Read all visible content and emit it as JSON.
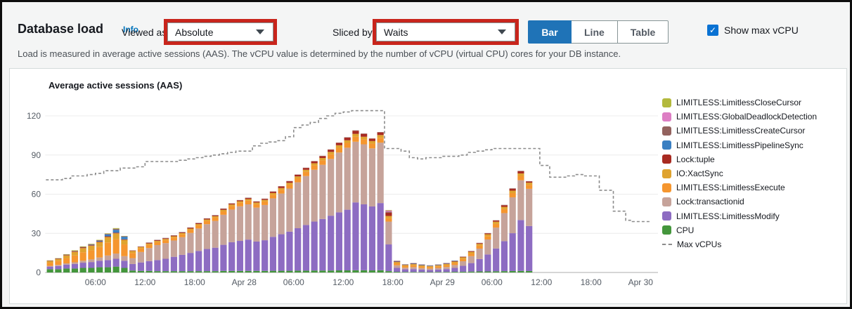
{
  "header": {
    "title": "Database load",
    "info_label": "Info"
  },
  "subtitle": "Load is measured in average active sessions (AAS). The vCPU value is determined by the number of vCPU (virtual CPU) cores for your DB instance.",
  "controls": {
    "viewed_as_label": "Viewed as",
    "viewed_as_value": "Absolute",
    "sliced_by_label": "Sliced by",
    "sliced_by_value": "Waits",
    "annotation_color": "#c8251c",
    "view_buttons": [
      {
        "label": "Bar",
        "selected": true
      },
      {
        "label": "Line",
        "selected": false
      },
      {
        "label": "Table",
        "selected": false
      }
    ],
    "selected_button_color": "#1f73b7",
    "show_max_vcpu": {
      "label": "Show max vCPU",
      "checked": true,
      "check_icon": "✓",
      "color": "#0972d3"
    }
  },
  "chart_data": {
    "type": "bar",
    "stacked": true,
    "title": "Average active sessions (AAS)",
    "ylabel": "",
    "xlabel": "",
    "ylim": [
      0,
      127
    ],
    "x_range_hours": [
      0,
      74
    ],
    "grid": "horizontal",
    "legend_position": "right",
    "y_ticks": [
      0,
      30,
      60,
      90,
      120
    ],
    "x_ticks": [
      {
        "h": 6,
        "label": "06:00"
      },
      {
        "h": 12,
        "label": "12:00"
      },
      {
        "h": 18,
        "label": "18:00"
      },
      {
        "h": 24,
        "label": "Apr 28"
      },
      {
        "h": 30,
        "label": "06:00"
      },
      {
        "h": 36,
        "label": "12:00"
      },
      {
        "h": 42,
        "label": "18:00"
      },
      {
        "h": 48,
        "label": "Apr 29"
      },
      {
        "h": 54,
        "label": "06:00"
      },
      {
        "h": 60,
        "label": "12:00"
      },
      {
        "h": 66,
        "label": "18:00"
      },
      {
        "h": 72,
        "label": "Apr 30"
      }
    ],
    "series": [
      {
        "name": "CPU",
        "color": "#44963c"
      },
      {
        "name": "LIMITLESS:LimitlessModify",
        "color": "#8d6cc2"
      },
      {
        "name": "Lock:transactionid",
        "color": "#c6a39a"
      },
      {
        "name": "LIMITLESS:LimitlessExecute",
        "color": "#f5962f"
      },
      {
        "name": "IO:XactSync",
        "color": "#dfa32f"
      },
      {
        "name": "Lock:tuple",
        "color": "#a82a21"
      },
      {
        "name": "LIMITLESS:LimitlessPipelineSync",
        "color": "#3a7fc2"
      },
      {
        "name": "LIMITLESS:LimitlessCreateCursor",
        "color": "#93625e"
      },
      {
        "name": "LIMITLESS:GlobalDeadlockDetection",
        "color": "#dd7ec4"
      },
      {
        "name": "LIMITLESS:LimitlessCloseCursor",
        "color": "#b3b93d"
      }
    ],
    "bars": [
      [
        0.5,
        2.5,
        2,
        0.5,
        2.5,
        1.2,
        0.2,
        0,
        0.2,
        0,
        0.2
      ],
      [
        1.5,
        2.5,
        2.5,
        0.8,
        3,
        1.5,
        0.2,
        0,
        0.3,
        0,
        0.2
      ],
      [
        2.5,
        3,
        3,
        1,
        4,
        2,
        0.3,
        0,
        0.4,
        0,
        0.3
      ],
      [
        3.5,
        3,
        3.5,
        1.3,
        5.2,
        2.8,
        0.3,
        0,
        0.5,
        0,
        0.4
      ],
      [
        4.5,
        3.5,
        4,
        1.5,
        6.5,
        3.2,
        0.4,
        0,
        0.5,
        0,
        0.4
      ],
      [
        5.5,
        3.5,
        4.5,
        2,
        7,
        3.5,
        0.4,
        0.3,
        0.5,
        0,
        0.3
      ],
      [
        6.5,
        4,
        5,
        2.5,
        8,
        3.8,
        0.4,
        0.5,
        0.5,
        0,
        0.3
      ],
      [
        7.5,
        4,
        5.5,
        3.5,
        10,
        4.2,
        0.5,
        1.5,
        0.5,
        0,
        0.3
      ],
      [
        8.5,
        4.5,
        6,
        4,
        11,
        4.5,
        0.5,
        2.2,
        0.8,
        0,
        0.5
      ],
      [
        9.5,
        3.5,
        5.5,
        3.5,
        9,
        3.5,
        0.4,
        2,
        0.4,
        0,
        0.2
      ],
      [
        10.5,
        1.5,
        5,
        4.5,
        4,
        1.5,
        0.3,
        0,
        0.2,
        0,
        0
      ],
      [
        11.5,
        1.2,
        6.5,
        8,
        2.8,
        1,
        0.3,
        0,
        0.2,
        0,
        0
      ],
      [
        12.5,
        1.2,
        7.5,
        10,
        2.5,
        1,
        0.5,
        0,
        0.3,
        0,
        0
      ],
      [
        13.5,
        1,
        8.5,
        11.5,
        2.2,
        1,
        0.5,
        0,
        0.3,
        0,
        0
      ],
      [
        14.5,
        1,
        9.5,
        12,
        2.2,
        1,
        0.5,
        0,
        0.3,
        0,
        0
      ],
      [
        15.5,
        1,
        11,
        12.5,
        2.2,
        1,
        0.5,
        0,
        0.3,
        0,
        0
      ],
      [
        16.5,
        1,
        12.5,
        13.5,
        2.2,
        1,
        0.5,
        0,
        0.3,
        0,
        0
      ],
      [
        17.5,
        1,
        14,
        15.3,
        2.3,
        1,
        0.6,
        0,
        0.3,
        0,
        0
      ],
      [
        18.5,
        1,
        15.5,
        17.2,
        2.4,
        1,
        0.6,
        0,
        0.3,
        0,
        0
      ],
      [
        19.5,
        1,
        17,
        19,
        2.5,
        1.1,
        0.6,
        0,
        0.3,
        0,
        0
      ],
      [
        20.5,
        1,
        18,
        20.5,
        2.5,
        1.1,
        0.6,
        0,
        0.3,
        0,
        0
      ],
      [
        21.5,
        1.2,
        20,
        23,
        2.6,
        1.2,
        0.7,
        0,
        0.3,
        0,
        0
      ],
      [
        22.5,
        1.2,
        22,
        25,
        2.7,
        1.2,
        0.7,
        0,
        0.2,
        0,
        0
      ],
      [
        23.5,
        1.2,
        23,
        26.5,
        2.7,
        1.2,
        0.7,
        0,
        0.2,
        0,
        0
      ],
      [
        24.5,
        1.2,
        24,
        27,
        2.8,
        1.2,
        0.8,
        0,
        0.3,
        0,
        0
      ],
      [
        25.5,
        1.2,
        22.5,
        26,
        2.7,
        1.2,
        0.7,
        0,
        0.2,
        0,
        0
      ],
      [
        26.5,
        1.2,
        23.5,
        27,
        2.7,
        1.2,
        0.8,
        0,
        0.2,
        0,
        0
      ],
      [
        27.5,
        1.3,
        26,
        29.5,
        2.8,
        1.3,
        1,
        0,
        0.2,
        0,
        0
      ],
      [
        28.5,
        1.3,
        28,
        31.2,
        2.9,
        1.3,
        1.2,
        0,
        0.2,
        0,
        0
      ],
      [
        29.5,
        1.3,
        30,
        33,
        3,
        1.4,
        1.2,
        0,
        0.2,
        0,
        0
      ],
      [
        30.5,
        1.4,
        32.5,
        35.2,
        3,
        1.5,
        1.3,
        0,
        0.2,
        0,
        0
      ],
      [
        31.5,
        1.4,
        35,
        37.5,
        3.2,
        1.6,
        1.4,
        0,
        0.2,
        0,
        0
      ],
      [
        32.5,
        1.5,
        37.5,
        39.7,
        3.3,
        1.7,
        1.5,
        0,
        0.2,
        0,
        0
      ],
      [
        33.5,
        1.5,
        39.5,
        41.5,
        3.4,
        1.8,
        1.5,
        0,
        0.2,
        0,
        0
      ],
      [
        34.5,
        1.5,
        42,
        43.5,
        3.5,
        1.9,
        1.7,
        0,
        0.2,
        0,
        0
      ],
      [
        35.5,
        1.6,
        44.5,
        45.8,
        3.6,
        2,
        1.8,
        0,
        0.2,
        0,
        0
      ],
      [
        36.5,
        1.6,
        46.5,
        47.5,
        3.7,
        2,
        2,
        0,
        0.3,
        0,
        0
      ],
      [
        37.5,
        1.7,
        52,
        46.5,
        3.8,
        2.2,
        2.4,
        0,
        0.3,
        0,
        0
      ],
      [
        38.5,
        1.7,
        50.5,
        46,
        3.7,
        2.1,
        2.2,
        0,
        0.3,
        0,
        0
      ],
      [
        39.5,
        1.6,
        49,
        44.5,
        3.6,
        2,
        1.8,
        0,
        0.2,
        0,
        0
      ],
      [
        40.5,
        1.7,
        51.5,
        46.3,
        3.7,
        2.1,
        2,
        0,
        0.3,
        0,
        0
      ],
      [
        41.5,
        1,
        20.5,
        17.5,
        2.5,
        1.8,
        2.5,
        0,
        0.8,
        0.9,
        0.4
      ],
      [
        42.5,
        0.5,
        3,
        2,
        1.5,
        1,
        0.4,
        0.3,
        0.3,
        0,
        0
      ],
      [
        43.5,
        0.4,
        2,
        1.3,
        1.2,
        0.8,
        0.2,
        0.2,
        0.2,
        0,
        0
      ],
      [
        44.5,
        0.4,
        2.2,
        1.5,
        1.4,
        0.9,
        0.3,
        0.3,
        0.2,
        0,
        0
      ],
      [
        45.5,
        0.4,
        1.8,
        1.2,
        1.2,
        0.8,
        0.2,
        0.4,
        0.2,
        0,
        0
      ],
      [
        46.5,
        0.3,
        1.6,
        1.1,
        1.1,
        0.7,
        0.2,
        0.3,
        0.2,
        0,
        0
      ],
      [
        47.5,
        0.4,
        1.8,
        1.3,
        1.2,
        0.8,
        0.2,
        0.3,
        0.2,
        0,
        0
      ],
      [
        48.5,
        0.4,
        2.2,
        1.6,
        1.4,
        0.9,
        0.3,
        0.3,
        0.2,
        0,
        0
      ],
      [
        49.5,
        0.5,
        3,
        2.2,
        1.6,
        1,
        0.3,
        0.3,
        0.2,
        0,
        0
      ],
      [
        50.5,
        0.6,
        4.5,
        3.5,
        1.8,
        1.2,
        0.4,
        0,
        0.2,
        0,
        0
      ],
      [
        51.5,
        0.7,
        6.5,
        5.3,
        2,
        1.3,
        0.5,
        0,
        0.2,
        0,
        0
      ],
      [
        52.5,
        0.8,
        9.5,
        8,
        2.2,
        1.4,
        0.6,
        0,
        0.2,
        0,
        0
      ],
      [
        53.5,
        0.8,
        13,
        11.5,
        2.5,
        1.5,
        0.7,
        0,
        0.2,
        0,
        0
      ],
      [
        54.5,
        0.9,
        17.5,
        16,
        2.8,
        1.7,
        0.9,
        0,
        0.2,
        0,
        0
      ],
      [
        55.5,
        1,
        23,
        21.5,
        3,
        1.8,
        1.2,
        0,
        0.3,
        0,
        0
      ],
      [
        56.5,
        1.1,
        29,
        27.5,
        3.2,
        1.9,
        1.5,
        0,
        0.3,
        0,
        0
      ],
      [
        57.5,
        1.2,
        39,
        30.5,
        3.3,
        1.9,
        1.7,
        0,
        0.3,
        0,
        0
      ],
      [
        58.5,
        1.1,
        34.5,
        28.5,
        3.1,
        1.6,
        0.9,
        0,
        0.2,
        0,
        0
      ]
    ],
    "max_vcpus": {
      "name": "Max vCPUs",
      "color": "#8c8c8c",
      "style": "dashed-step",
      "points": [
        [
          0,
          71
        ],
        [
          2,
          72
        ],
        [
          3,
          74
        ],
        [
          5,
          75
        ],
        [
          6,
          76
        ],
        [
          7,
          78
        ],
        [
          9,
          80
        ],
        [
          11,
          81
        ],
        [
          12,
          85
        ],
        [
          16,
          86
        ],
        [
          17,
          87
        ],
        [
          18,
          88
        ],
        [
          19,
          89
        ],
        [
          20,
          90
        ],
        [
          21,
          91
        ],
        [
          22,
          92
        ],
        [
          23,
          93
        ],
        [
          24,
          93
        ],
        [
          25,
          97
        ],
        [
          26,
          99
        ],
        [
          27,
          100
        ],
        [
          28,
          101
        ],
        [
          29,
          104
        ],
        [
          30,
          111
        ],
        [
          31,
          113
        ],
        [
          32,
          115
        ],
        [
          33,
          118
        ],
        [
          34,
          120
        ],
        [
          35,
          122
        ],
        [
          36,
          123
        ],
        [
          37,
          124
        ],
        [
          40.8,
          124
        ],
        [
          41,
          95
        ],
        [
          42,
          95
        ],
        [
          43,
          93
        ],
        [
          44,
          88
        ],
        [
          45,
          87
        ],
        [
          46,
          88
        ],
        [
          48,
          89
        ],
        [
          50,
          90
        ],
        [
          51,
          92
        ],
        [
          52,
          93
        ],
        [
          53,
          94
        ],
        [
          54,
          95
        ],
        [
          59.7,
          95
        ],
        [
          59.8,
          82
        ],
        [
          60.8,
          82
        ],
        [
          61,
          73
        ],
        [
          63,
          74
        ],
        [
          64,
          75
        ],
        [
          65,
          74
        ],
        [
          66,
          74
        ],
        [
          67,
          63
        ],
        [
          68.5,
          63
        ],
        [
          68.7,
          47
        ],
        [
          70,
          47
        ],
        [
          70.2,
          40
        ],
        [
          71,
          39
        ],
        [
          73.2,
          39
        ]
      ]
    }
  }
}
